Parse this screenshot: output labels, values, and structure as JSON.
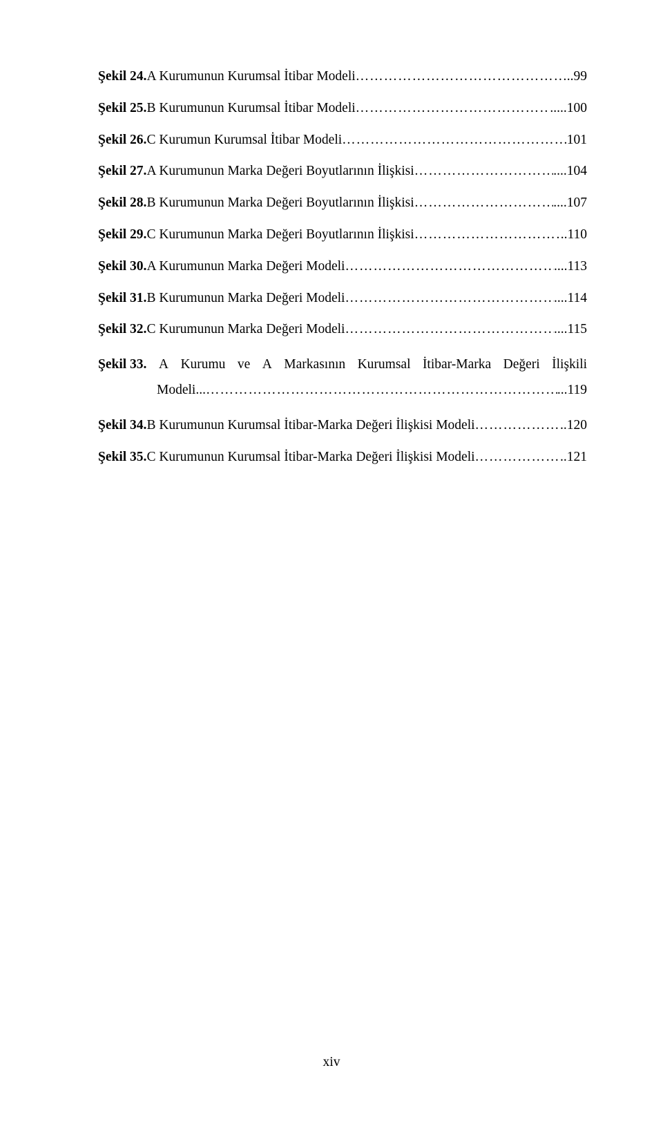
{
  "font": {
    "family": "Times New Roman",
    "body_size_pt": 12,
    "label_weight": "bold"
  },
  "colors": {
    "text": "#000000",
    "background": "#ffffff"
  },
  "entries": [
    {
      "label": "Şekil 24.",
      "text": " A Kurumunun Kurumsal İtibar Modeli",
      "suffix": "..",
      "page": "99"
    },
    {
      "label": "Şekil 25.",
      "text": " B Kurumunun Kurumsal İtibar Modeli",
      "suffix": "..",
      "page": "...100"
    },
    {
      "label": "Şekil 26.",
      "text": " C Kurumun Kurumsal İtibar Modeli",
      "suffix": "",
      "page": "101"
    },
    {
      "label": "Şekil 27.",
      "text": " A Kurumunun Marka Değeri Boyutlarının İlişkisi",
      "suffix": "..",
      "page": "..104"
    },
    {
      "label": "Şekil 28.",
      "text": " B Kurumunun Marka Değeri Boyutlarının İlişkisi",
      "suffix": "...",
      "page": ".107"
    },
    {
      "label": "Şekil 29.",
      "text": " C Kurumunun Marka Değeri Boyutlarının İlişkisi ",
      "suffix": "..",
      "page": "110"
    },
    {
      "label": "Şekil 30.",
      "text": " A Kurumunun Marka Değeri Modeli",
      "suffix": "..",
      "page": "..113"
    },
    {
      "label": "Şekil 31.",
      "text": " B Kurumunun Marka Değeri Modeli",
      "suffix": "..",
      "page": "..114"
    },
    {
      "label": "Şekil 32.",
      "text": " C Kurumunun Marka Değeri Modeli",
      "suffix": "...",
      "page": ".115"
    },
    {
      "multiline": true,
      "label": "Şekil 33.",
      "line1_words": [
        "A",
        "Kurumu",
        "ve",
        "A",
        "Markasının",
        "Kurumsal",
        "İtibar-Marka",
        "Değeri",
        "İlişkili"
      ],
      "line2_text": "Modeli",
      "line2_suffix": "...",
      "page": "...119"
    },
    {
      "label": "Şekil 34.",
      "text": " B Kurumunun Kurumsal İtibar-Marka Değeri İlişkisi Modeli",
      "suffix": "",
      "page": "..120"
    },
    {
      "label": "Şekil 35.",
      "text": " C Kurumunun Kurumsal İtibar-Marka Değeri İlişkisi Modeli",
      "suffix": "",
      "page": "..121"
    }
  ],
  "footer": "xiv"
}
